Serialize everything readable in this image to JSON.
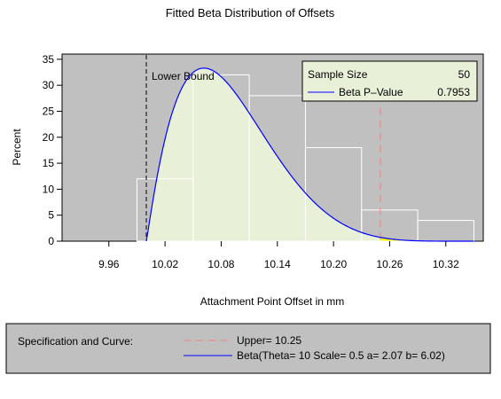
{
  "chart_data": {
    "type": "bar",
    "title": "Fitted Beta Distribution of Offsets",
    "xlabel": "Attachment Point Offset in mm",
    "ylabel": "Percent",
    "xlim": [
      9.91,
      10.36
    ],
    "ylim": [
      0,
      36
    ],
    "x_ticks": [
      9.96,
      10.02,
      10.08,
      10.14,
      10.2,
      10.26,
      10.32
    ],
    "x_tick_labels": [
      "9.96",
      "10.02",
      "10.08",
      "10.14",
      "10.20",
      "10.26",
      "10.32"
    ],
    "y_ticks": [
      0,
      5,
      10,
      15,
      20,
      25,
      30,
      35
    ],
    "y_tick_labels": [
      "0",
      "5",
      "10",
      "15",
      "20",
      "25",
      "30",
      "35"
    ],
    "histogram": {
      "bin_edges": [
        9.99,
        10.05,
        10.11,
        10.17,
        10.23,
        10.29,
        10.35
      ],
      "values": [
        12,
        32,
        28,
        18,
        6,
        4
      ]
    },
    "beta_curve": {
      "name": "Beta",
      "theta": 10,
      "scale": 0.5,
      "a": 2.07,
      "b": 6.02,
      "x_start": 10.0,
      "x_end": 10.35,
      "peak_percent": 33.3
    },
    "lower_bound": {
      "x": 10.0,
      "label": "Lower Bound"
    },
    "upper_spec": {
      "x": 10.25
    },
    "inset": {
      "rows": [
        {
          "label": "Sample Size",
          "value": "50"
        },
        {
          "label": "Beta P–Value",
          "value": "0.7953"
        }
      ]
    },
    "legend": {
      "title": "Specification and Curve:",
      "entries": [
        {
          "label": "Upper= 10.25",
          "style": "dashed",
          "color": "#f08080"
        },
        {
          "label": "Beta(Theta= 10 Scale= 0.5 a= 2.07 b= 6.02)",
          "style": "solid",
          "color": "#0000ff"
        }
      ]
    },
    "colors": {
      "plot_background": "#c0c0c0",
      "fill_under_curve": "#e8f0d8",
      "fill_beyond_upper": "#ffff00",
      "bar_outline": "#ffffff",
      "curve": "#0000ff",
      "upper_line": "#f08080",
      "lower_bound_line": "#000000",
      "legend_background": "#c0c0c0"
    },
    "grid": false
  }
}
